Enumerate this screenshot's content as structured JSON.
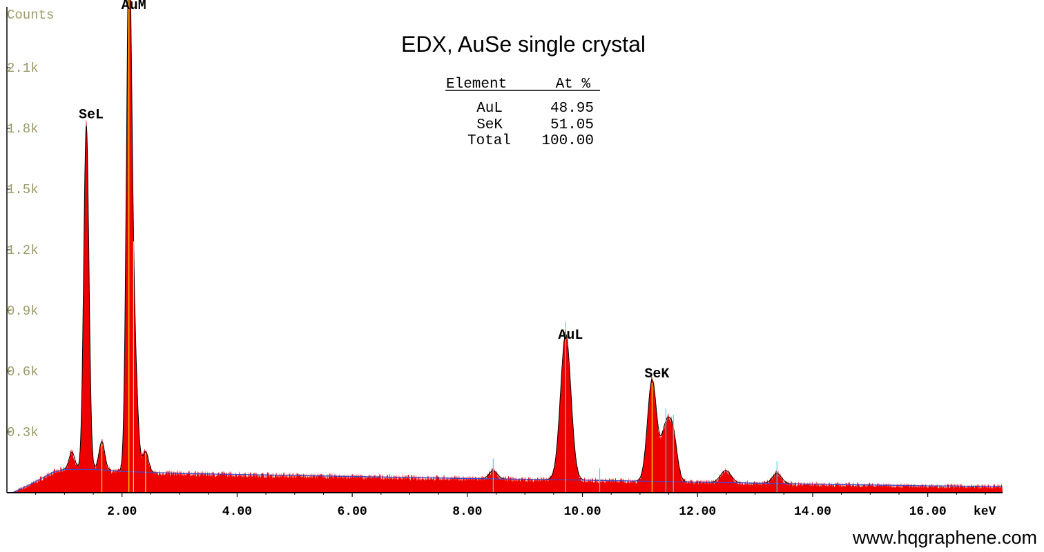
{
  "chart_data": {
    "type": "area",
    "title": "EDX, AuSe single crystal",
    "ylabel": "Counts",
    "xlabel": "keV",
    "xlim": [
      0.0,
      17.3
    ],
    "ylim": [
      0,
      2400
    ],
    "x_ticks": [
      {
        "value": 2,
        "label": "2.00"
      },
      {
        "value": 4,
        "label": "4.00"
      },
      {
        "value": 6,
        "label": "6.00"
      },
      {
        "value": 8,
        "label": "8.00"
      },
      {
        "value": 10,
        "label": "10.00"
      },
      {
        "value": 12,
        "label": "12.00"
      },
      {
        "value": 14,
        "label": "14.00"
      },
      {
        "value": 16,
        "label": "16.00"
      }
    ],
    "y_ticks": [
      {
        "value": 300,
        "label": "0.3k"
      },
      {
        "value": 600,
        "label": "0.6k"
      },
      {
        "value": 900,
        "label": "0.9k"
      },
      {
        "value": 1200,
        "label": "1.2k"
      },
      {
        "value": 1500,
        "label": "1.5k"
      },
      {
        "value": 1800,
        "label": "1.8k"
      },
      {
        "value": 2100,
        "label": "2.1k"
      }
    ],
    "background": [
      [
        0.1,
        0
      ],
      [
        0.4,
        40
      ],
      [
        0.8,
        100
      ],
      [
        1.0,
        115
      ],
      [
        1.5,
        115
      ],
      [
        2.0,
        105
      ],
      [
        3.0,
        95
      ],
      [
        4.0,
        90
      ],
      [
        6.0,
        80
      ],
      [
        8.0,
        70
      ],
      [
        10.0,
        62
      ],
      [
        12.0,
        52
      ],
      [
        14.0,
        42
      ],
      [
        16.0,
        34
      ],
      [
        17.3,
        30
      ]
    ],
    "peaks": [
      {
        "center": 1.13,
        "height": 85,
        "width": 0.05
      },
      {
        "center": 1.38,
        "height": 1700,
        "width": 0.045
      },
      {
        "center": 1.65,
        "height": 140,
        "width": 0.05
      },
      {
        "center": 2.12,
        "height": 2320,
        "width": 0.045
      },
      {
        "center": 2.2,
        "height": 700,
        "width": 0.06
      },
      {
        "center": 2.41,
        "height": 100,
        "width": 0.05
      },
      {
        "center": 8.45,
        "height": 40,
        "width": 0.07
      },
      {
        "center": 9.71,
        "height": 720,
        "width": 0.09
      },
      {
        "center": 11.21,
        "height": 500,
        "width": 0.08
      },
      {
        "center": 11.45,
        "height": 260,
        "width": 0.08
      },
      {
        "center": 11.58,
        "height": 200,
        "width": 0.07
      },
      {
        "center": 12.49,
        "height": 60,
        "width": 0.09
      },
      {
        "center": 13.38,
        "height": 50,
        "width": 0.08
      }
    ],
    "peak_labels": [
      {
        "text": "SeL",
        "x": 1.38,
        "y": 1850
      },
      {
        "text": "AuM",
        "x": 2.12,
        "y": 2390
      },
      {
        "text": "AuL",
        "x": 9.71,
        "y": 760
      },
      {
        "text": "SeK",
        "x": 11.21,
        "y": 570
      }
    ],
    "marker_lines": {
      "yellow": [
        1.65,
        2.12,
        2.2,
        2.41,
        9.71,
        11.21
      ],
      "cyan": [
        8.45,
        9.71,
        10.3,
        11.45,
        11.58,
        13.38
      ]
    },
    "colors": {
      "fill": "#ee0000",
      "fit": "#000000",
      "background_line": "#3b4bd8",
      "axis": "#000000",
      "ytick_text": "#9a9a6a"
    }
  },
  "table": {
    "header_element": "Element",
    "header_at": "At %",
    "rows": [
      {
        "element": "AuL",
        "value": "48.95"
      },
      {
        "element": "SeK",
        "value": "51.05"
      },
      {
        "element": "Total",
        "value": "100.00"
      }
    ]
  },
  "footer": "www.hqgraphene.com"
}
